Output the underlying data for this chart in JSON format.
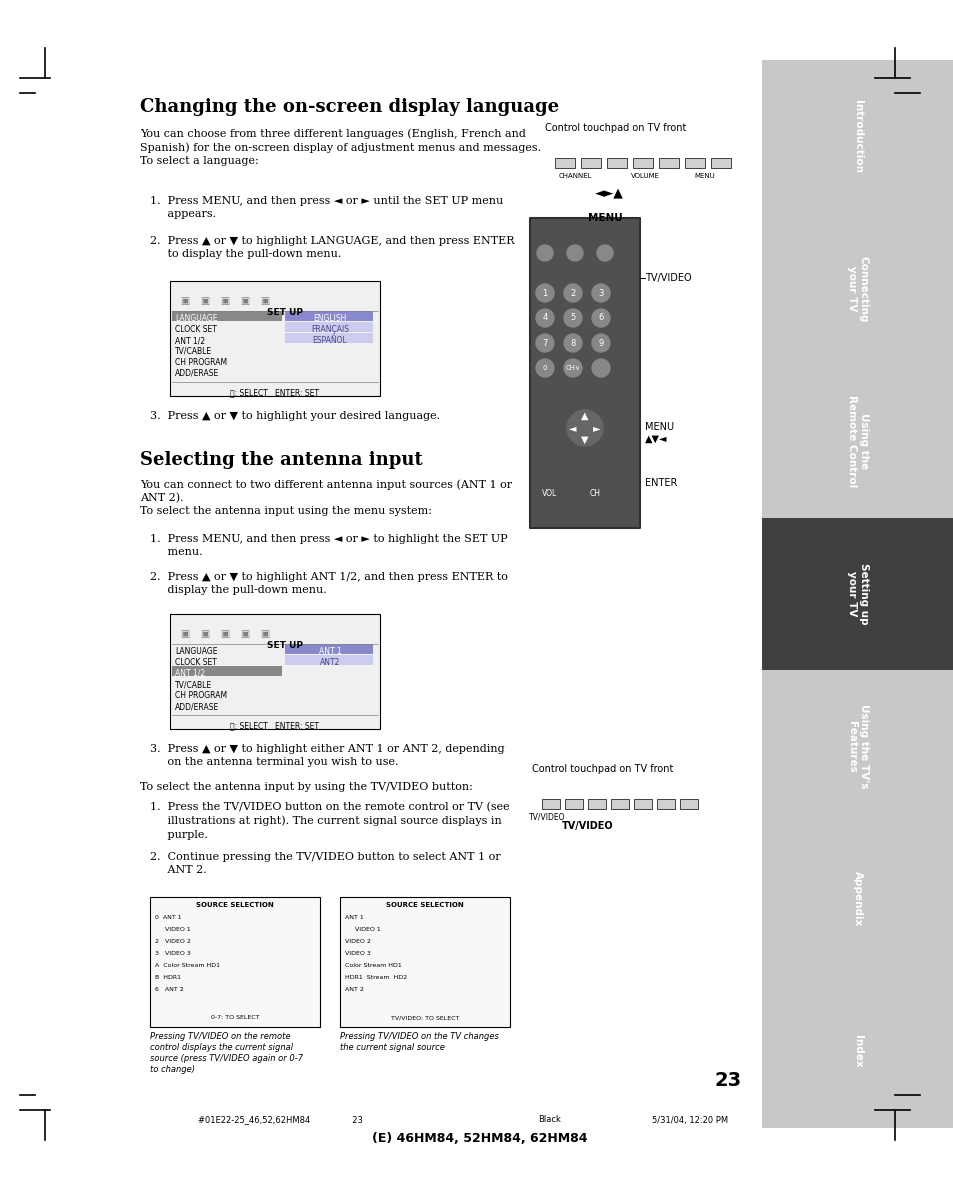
{
  "page_bg": "#ffffff",
  "sidebar_bg": "#c8c8c8",
  "sidebar_active_bg": "#404040",
  "sidebar_text_color": "#ffffff",
  "sidebar_labels": [
    "Introduction",
    "Connecting\nyour TV",
    "Using the\nRemote Control",
    "Setting up\nyour TV",
    "Using the TV's\nFeatures",
    "Appendix",
    "Index"
  ],
  "sidebar_active_index": 3,
  "title1": "Changing the on-screen display language",
  "title2": "Selecting the antenna input",
  "body_text_color": "#000000",
  "page_number": "23",
  "footer_text": "(E) 46HM84, 52HM84, 62HM84",
  "footer_left": "#01E22-25_46,52,62HM84                23",
  "footer_right": "5/31/04, 12:20 PM",
  "footer_color_label": "Black"
}
